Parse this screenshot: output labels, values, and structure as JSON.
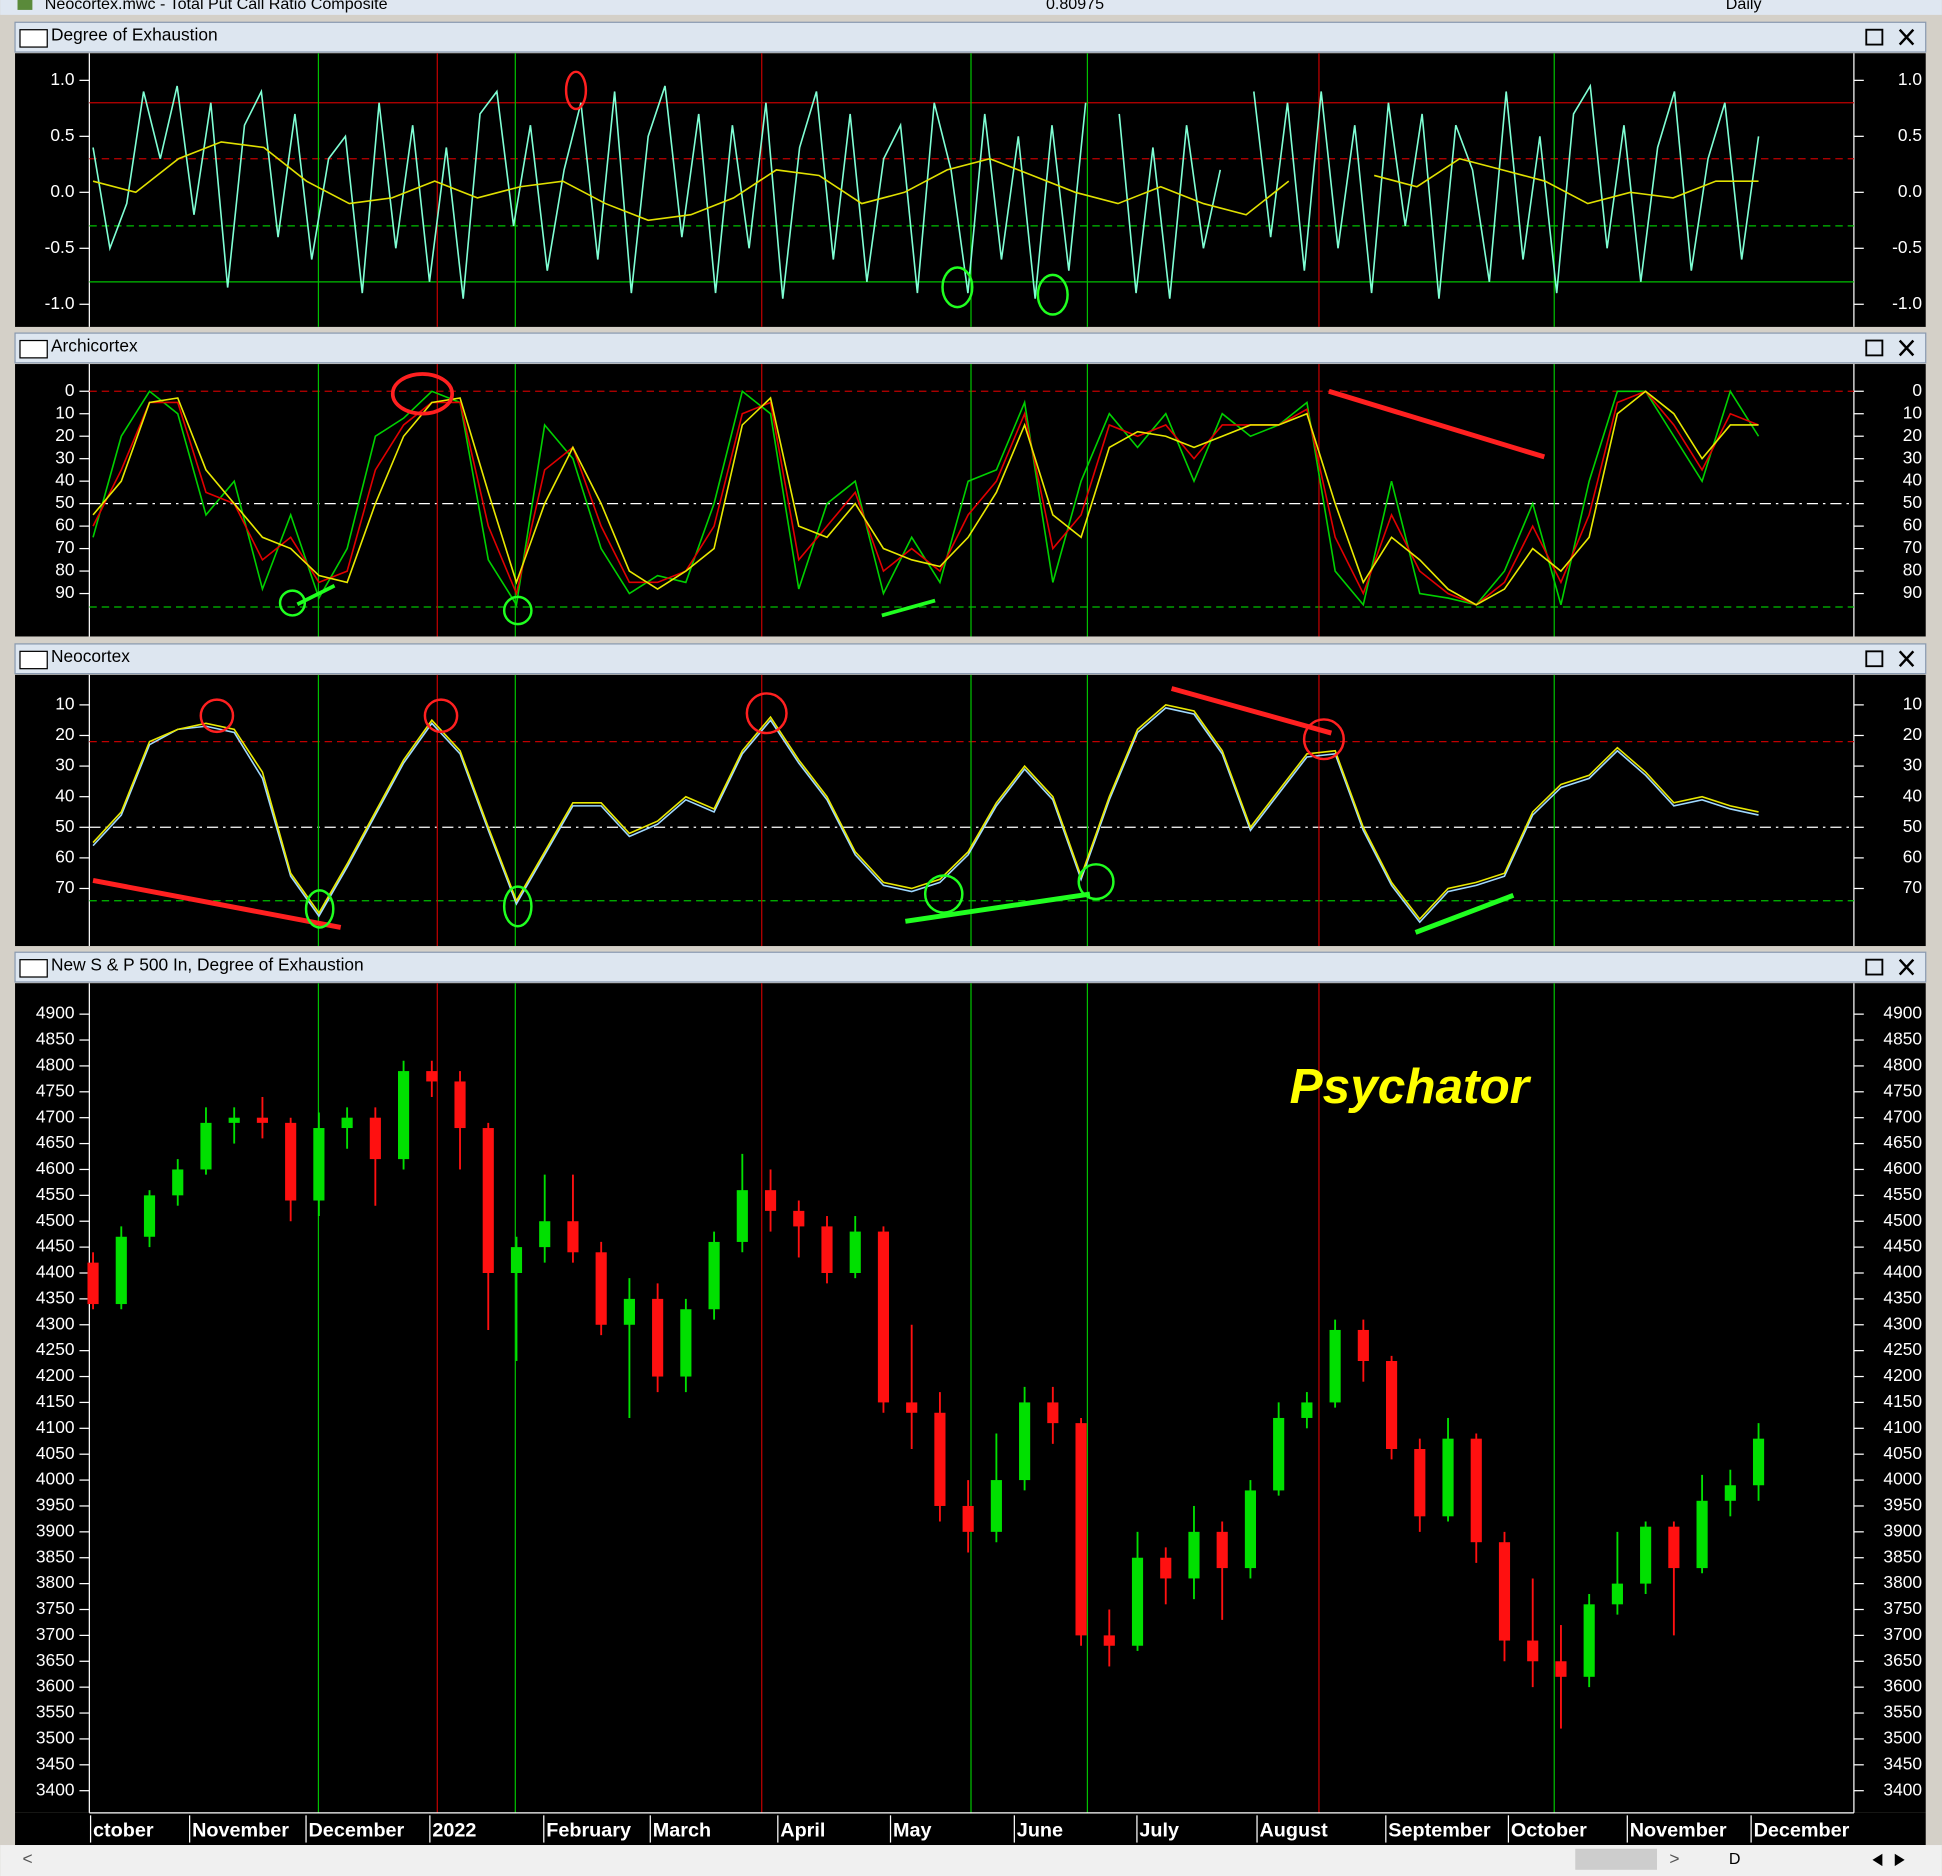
{
  "window": {
    "title": "Neocortex.mwc - Total Put Call Ratio Composite",
    "value": "0.80975",
    "period": "Daily",
    "toolbar_label": "D"
  },
  "chart_data": [
    {
      "type": "line",
      "title": "Degree of Exhaustion",
      "ylim": [
        -1.18,
        1.22
      ],
      "yticks": [
        {
          "value": 1,
          "label": "1.0"
        },
        0.5,
        {
          "value": 0,
          "label": "0.0"
        },
        -0.5,
        {
          "value": -1,
          "label": "-1.0"
        }
      ],
      "inverted": false,
      "hlines": [
        {
          "value": 0.8,
          "color": "#c00000",
          "style": "solid"
        },
        {
          "value": 0.3,
          "color": "#c00000",
          "style": "dashed"
        },
        {
          "value": -0.3,
          "color": "#00c000",
          "style": "dashed"
        },
        {
          "value": -0.8,
          "color": "#00c000",
          "style": "solid"
        }
      ],
      "series": [
        {
          "color": "#7fffd4",
          "values": [
            0.4,
            -0.5,
            -0.1,
            0.9,
            0.3,
            0.95,
            -0.2,
            0.8,
            -0.85,
            0.6,
            0.9,
            -0.4,
            0.7,
            -0.6,
            0.3,
            0.5,
            -0.9,
            0.8,
            -0.5,
            0.6,
            -0.8,
            0.4,
            -0.95,
            0.7,
            0.9,
            -0.3,
            0.6,
            -0.7,
            0.2,
            0.8,
            -0.6,
            0.9,
            -0.9,
            0.5,
            0.95,
            -0.4,
            0.7,
            -0.9,
            0.6,
            -0.5,
            0.8,
            -0.95,
            0.4,
            0.9,
            -0.6,
            0.7,
            -0.8,
            0.3,
            0.6,
            -0.9,
            0.8,
            0.2,
            -0.9,
            0.7,
            -0.6,
            0.5,
            -0.95,
            0.6,
            -0.7,
            0.8,
            null,
            0.7,
            -0.9,
            0.4,
            -0.95,
            0.6,
            -0.5,
            0.2,
            null,
            0.9,
            -0.4,
            0.8,
            -0.7,
            0.9,
            -0.5,
            0.6,
            -0.9,
            0.8,
            -0.3,
            0.7,
            -0.95,
            0.6,
            0.2,
            -0.8,
            0.9,
            -0.6,
            0.5,
            -0.9,
            0.7,
            0.95,
            -0.5,
            0.6,
            -0.8,
            0.4,
            0.9,
            -0.7,
            0.3,
            0.8,
            -0.6,
            0.5
          ]
        },
        {
          "color": "#e0e000",
          "values": [
            0.1,
            0.0,
            0.3,
            0.45,
            0.4,
            0.1,
            -0.1,
            -0.05,
            0.1,
            -0.05,
            0.05,
            0.1,
            -0.1,
            -0.25,
            -0.2,
            -0.05,
            0.2,
            0.15,
            -0.1,
            0.0,
            0.2,
            0.3,
            0.15,
            0.0,
            -0.1,
            0.05,
            -0.1,
            -0.2,
            0.1,
            null,
            0.15,
            0.05,
            0.3,
            0.2,
            0.1,
            -0.1,
            0.0,
            -0.05,
            0.1,
            0.1
          ]
        }
      ]
    },
    {
      "type": "line",
      "title": "Archicortex",
      "ylim": [
        -11,
        108
      ],
      "yticks": [
        0,
        10,
        20,
        30,
        40,
        50,
        60,
        70,
        80,
        90
      ],
      "inverted": true,
      "hlines": [
        {
          "value": 0,
          "color": "#c00000",
          "style": "dashed"
        },
        {
          "value": 50,
          "color": "#ffffff",
          "style": "dashdot"
        },
        {
          "value": 96,
          "color": "#00c000",
          "style": "dashed"
        }
      ],
      "series": [
        {
          "color": "#00d000",
          "values": [
            65,
            20,
            0,
            10,
            55,
            40,
            88,
            55,
            92,
            70,
            20,
            12,
            0,
            5,
            75,
            95,
            15,
            30,
            70,
            90,
            82,
            85,
            50,
            0,
            10,
            88,
            50,
            40,
            90,
            65,
            85,
            40,
            35,
            5,
            85,
            40,
            10,
            25,
            10,
            40,
            10,
            20,
            15,
            5,
            80,
            95,
            40,
            90,
            92,
            95,
            80,
            50,
            95,
            40,
            0,
            0,
            20,
            40,
            0,
            20
          ]
        },
        {
          "color": "#e00000",
          "values": [
            60,
            35,
            5,
            5,
            45,
            50,
            75,
            65,
            85,
            80,
            35,
            15,
            5,
            5,
            60,
            90,
            35,
            25,
            60,
            85,
            85,
            80,
            60,
            10,
            5,
            75,
            60,
            45,
            80,
            70,
            80,
            55,
            40,
            10,
            70,
            55,
            15,
            20,
            15,
            30,
            15,
            15,
            15,
            8,
            65,
            90,
            55,
            80,
            90,
            95,
            85,
            60,
            85,
            55,
            5,
            0,
            15,
            35,
            10,
            15
          ]
        },
        {
          "color": "#e8e800",
          "values": [
            55,
            40,
            5,
            3,
            35,
            50,
            65,
            70,
            82,
            85,
            50,
            20,
            5,
            3,
            45,
            85,
            50,
            25,
            50,
            80,
            88,
            80,
            70,
            15,
            3,
            60,
            65,
            50,
            70,
            75,
            78,
            65,
            45,
            15,
            55,
            65,
            25,
            18,
            20,
            25,
            20,
            15,
            15,
            10,
            50,
            85,
            65,
            75,
            88,
            95,
            88,
            70,
            80,
            65,
            10,
            0,
            10,
            30,
            15,
            15
          ]
        }
      ]
    },
    {
      "type": "line",
      "title": "Neocortex",
      "ylim": [
        1,
        88
      ],
      "yticks": [
        10,
        20,
        30,
        40,
        50,
        60,
        70
      ],
      "inverted": true,
      "hlines": [
        {
          "value": 22,
          "color": "#c00000",
          "style": "dashed"
        },
        {
          "value": 50,
          "color": "#ffffff",
          "style": "dashdot"
        },
        {
          "value": 74,
          "color": "#00c000",
          "style": "dashed"
        }
      ],
      "series": [
        {
          "color": "#9fd8ff",
          "values": [
            56,
            46,
            23,
            18,
            17,
            19,
            34,
            66,
            79,
            63,
            46,
            29,
            16,
            26,
            51,
            75,
            59,
            43,
            43,
            53,
            49,
            41,
            45,
            26,
            15,
            29,
            41,
            59,
            69,
            71,
            68,
            59,
            43,
            31,
            41,
            67,
            41,
            19,
            11,
            13,
            26,
            51,
            39,
            27,
            26,
            51,
            69,
            81,
            71,
            69,
            66,
            46,
            37,
            34,
            25,
            33,
            43,
            41,
            44,
            46
          ]
        },
        {
          "color": "#e8e800",
          "values": [
            55,
            45,
            22,
            18,
            16,
            18,
            32,
            65,
            78,
            62,
            45,
            28,
            15,
            25,
            50,
            74,
            58,
            42,
            42,
            52,
            48,
            40,
            44,
            25,
            14,
            28,
            40,
            58,
            68,
            70,
            67,
            58,
            42,
            30,
            40,
            66,
            40,
            18,
            10,
            12,
            25,
            50,
            38,
            26,
            25,
            50,
            68,
            80,
            70,
            68,
            65,
            45,
            36,
            33,
            24,
            32,
            42,
            40,
            43,
            45
          ]
        }
      ]
    },
    {
      "type": "candlestick",
      "title": "New S & P 500 In, Degree of Exhaustion",
      "annotation": "Psychator",
      "ylim": [
        3362,
        4955
      ],
      "yticks": [
        3400,
        3450,
        3500,
        3550,
        3600,
        3650,
        3700,
        3750,
        3800,
        3850,
        3900,
        3950,
        4000,
        4050,
        4100,
        4150,
        4200,
        4250,
        4300,
        4350,
        4400,
        4450,
        4500,
        4550,
        4600,
        4650,
        4700,
        4750,
        4800,
        4850,
        4900
      ],
      "inverted": false,
      "up_color": "#00e000",
      "down_color": "#ff1010",
      "x_labels": [
        "ctober",
        "November",
        "December",
        "2022",
        "February",
        "March",
        "April",
        "May",
        "June",
        "July",
        "August",
        "September",
        "October",
        "November",
        "December"
      ],
      "open": [
        4420,
        4340,
        4470,
        4550,
        4600,
        4690,
        4700,
        4690,
        4540,
        4680,
        4700,
        4620,
        4790,
        4770,
        4680,
        4400,
        4450,
        4500,
        4440,
        4300,
        4350,
        4200,
        4330,
        4460,
        4560,
        4520,
        4490,
        4400,
        4480,
        4150,
        4130,
        3950,
        3900,
        4000,
        4150,
        4110,
        3700,
        3680,
        3850,
        3810,
        3900,
        3830,
        3980,
        4120,
        4150,
        4290,
        4230,
        4060,
        3930,
        4080,
        3880,
        3690,
        3650,
        3620,
        3760,
        3800,
        3910,
        3830,
        3960,
        3990
      ],
      "high": [
        4440,
        4490,
        4560,
        4620,
        4720,
        4720,
        4740,
        4700,
        4710,
        4720,
        4720,
        4810,
        4810,
        4790,
        4690,
        4470,
        4590,
        4590,
        4460,
        4390,
        4380,
        4350,
        4480,
        4630,
        4600,
        4540,
        4510,
        4510,
        4490,
        4300,
        4170,
        4000,
        4090,
        4180,
        4180,
        4120,
        3750,
        3900,
        3870,
        3950,
        3920,
        4000,
        4150,
        4170,
        4310,
        4310,
        4240,
        4080,
        4120,
        4090,
        3900,
        3810,
        3720,
        3780,
        3900,
        3920,
        3920,
        4010,
        4020,
        4110
      ],
      "low": [
        4330,
        4330,
        4450,
        4530,
        4590,
        4650,
        4660,
        4500,
        4510,
        4640,
        4530,
        4600,
        4740,
        4600,
        4290,
        4230,
        4420,
        4420,
        4280,
        4120,
        4170,
        4170,
        4310,
        4440,
        4480,
        4430,
        4380,
        4390,
        4130,
        4060,
        3920,
        3860,
        3880,
        3980,
        4070,
        3680,
        3640,
        3670,
        3760,
        3770,
        3730,
        3810,
        3970,
        4100,
        4140,
        4190,
        4040,
        3900,
        3920,
        3840,
        3650,
        3600,
        3520,
        3600,
        3740,
        3780,
        3700,
        3820,
        3930,
        3960
      ],
      "close": [
        4340,
        4470,
        4550,
        4600,
        4690,
        4700,
        4690,
        4540,
        4680,
        4700,
        4620,
        4790,
        4770,
        4680,
        4400,
        4450,
        4500,
        4440,
        4300,
        4350,
        4200,
        4330,
        4460,
        4560,
        4520,
        4490,
        4400,
        4480,
        4150,
        4130,
        3950,
        3900,
        4000,
        4150,
        4110,
        3700,
        3680,
        3850,
        3810,
        3900,
        3830,
        3980,
        4120,
        4150,
        4290,
        4230,
        4060,
        3930,
        4080,
        3880,
        3690,
        3650,
        3620,
        3760,
        3800,
        3910,
        3830,
        3960,
        3990,
        4080
      ]
    }
  ]
}
